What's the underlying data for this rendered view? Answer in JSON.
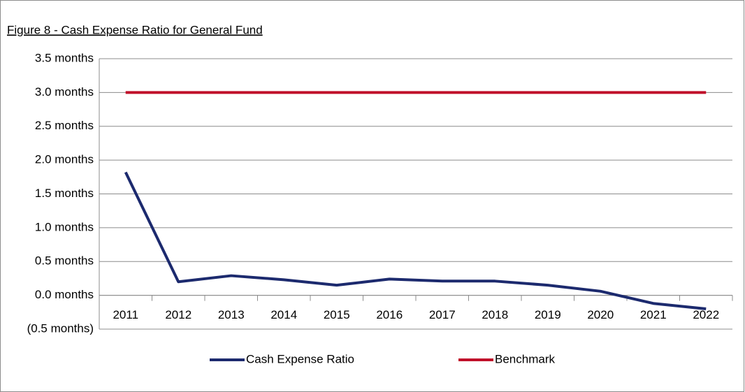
{
  "chart_data": {
    "type": "line",
    "title": "Figure 8 - Cash Expense Ratio for General Fund",
    "categories": [
      "2011",
      "2012",
      "2013",
      "2014",
      "2015",
      "2016",
      "2017",
      "2018",
      "2019",
      "2020",
      "2021",
      "2022"
    ],
    "series": [
      {
        "name": "Cash Expense Ratio",
        "color": "#1c2a6e",
        "values": [
          1.82,
          0.2,
          0.29,
          0.23,
          0.15,
          0.24,
          0.21,
          0.21,
          0.15,
          0.06,
          -0.12,
          -0.2
        ]
      },
      {
        "name": "Benchmark",
        "color": "#c0102a",
        "values": [
          3.0,
          3.0,
          3.0,
          3.0,
          3.0,
          3.0,
          3.0,
          3.0,
          3.0,
          3.0,
          3.0,
          3.0
        ]
      }
    ],
    "ylim": [
      -0.5,
      3.5
    ],
    "yticks": [
      {
        "value": -0.5,
        "label": "(0.5 months)"
      },
      {
        "value": 0,
        "label": "0.0 months"
      },
      {
        "value": 0.5,
        "label": "0.5 months"
      },
      {
        "value": 1,
        "label": "1.0 months"
      },
      {
        "value": 1.5,
        "label": "1.5 months"
      },
      {
        "value": 2,
        "label": "2.0 months"
      },
      {
        "value": 2.5,
        "label": "2.5 months"
      },
      {
        "value": 3,
        "label": "3.0 months"
      },
      {
        "value": 3.5,
        "label": "3.5 months"
      }
    ],
    "grid": true,
    "legend": "bottom"
  }
}
